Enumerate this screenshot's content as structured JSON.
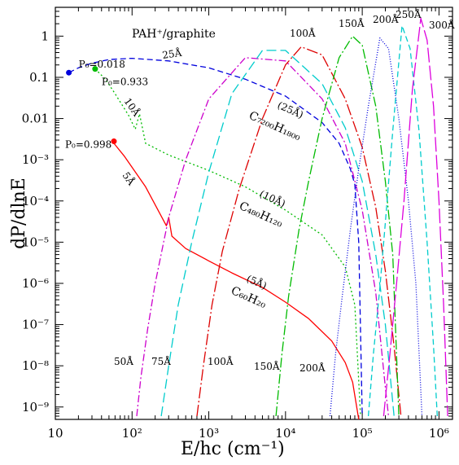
{
  "chart_data": {
    "type": "line",
    "title": "PAH⁺/graphite",
    "xlabel": "E/hc    (cm⁻¹)",
    "ylabel": "dP/dlnE",
    "xscale": "log",
    "yscale": "log",
    "xlim": [
      10,
      1500000
    ],
    "ylim": [
      5e-10,
      5
    ],
    "x_ticks": [
      {
        "value": 10,
        "label": "10"
      },
      {
        "value": 100,
        "label": "10²"
      },
      {
        "value": 1000,
        "label": "10³"
      },
      {
        "value": 10000,
        "label": "10⁴"
      },
      {
        "value": 100000,
        "label": "10⁵"
      },
      {
        "value": 1000000,
        "label": "10⁶"
      }
    ],
    "y_ticks": [
      {
        "value": 1,
        "label": "1"
      },
      {
        "value": 0.1,
        "label": "0.1"
      },
      {
        "value": 0.01,
        "label": "0.01"
      },
      {
        "value": 0.001,
        "label": "10⁻³"
      },
      {
        "value": 0.0001,
        "label": "10⁻⁴"
      },
      {
        "value": 1e-05,
        "label": "10⁻⁵"
      },
      {
        "value": 1e-06,
        "label": "10⁻⁶"
      },
      {
        "value": 1e-07,
        "label": "10⁻⁷"
      },
      {
        "value": 1e-08,
        "label": "10⁻⁸"
      },
      {
        "value": 1e-09,
        "label": "10⁻⁹"
      }
    ],
    "grid": false,
    "series": [
      {
        "name": "5Å",
        "color": "#ff0000",
        "dash": "solid",
        "x": [
          58,
          80,
          150,
          280,
          300,
          330,
          500,
          1000,
          2000,
          5000,
          10000,
          20000,
          40000,
          60000,
          75000,
          90000
        ],
        "y": [
          0.0025,
          0.0012,
          0.00022,
          2.5e-05,
          4e-05,
          1.4e-05,
          7e-06,
          3.5e-06,
          1.8e-06,
          8e-07,
          3.5e-07,
          1.4e-07,
          4e-08,
          1.2e-08,
          4e-09,
          5e-10
        ]
      },
      {
        "name": "10Å",
        "color": "#00bb00",
        "dash": "2,3",
        "x": [
          33,
          45,
          60,
          90,
          110,
          125,
          150,
          300,
          1000,
          3000,
          10000,
          30000,
          60000,
          80000,
          95000
        ],
        "y": [
          0.16,
          0.09,
          0.04,
          0.012,
          0.0055,
          0.013,
          0.0025,
          0.0013,
          0.00055,
          0.00022,
          6e-05,
          1.5e-05,
          2.5e-06,
          3e-07,
          6e-10
        ]
      },
      {
        "name": "25Å",
        "color": "#0000dd",
        "dash": "7,4",
        "x": [
          15,
          20,
          30,
          50,
          100,
          300,
          1000,
          3000,
          10000,
          30000,
          50000,
          70000,
          80000,
          90000,
          100000
        ],
        "y": [
          0.13,
          0.17,
          0.22,
          0.27,
          0.29,
          0.25,
          0.17,
          0.09,
          0.035,
          0.008,
          0.0025,
          0.0006,
          0.00025,
          1e-05,
          6e-10
        ]
      },
      {
        "name": "50Å",
        "color": "#cc00cc",
        "dash": "9,3,2,3",
        "x": [
          115,
          130,
          160,
          200,
          300,
          500,
          1000,
          3000,
          10000,
          30000,
          60000,
          100000,
          150000,
          200000,
          220000
        ],
        "y": [
          6e-10,
          5e-09,
          8e-08,
          1e-06,
          4e-05,
          0.001,
          0.03,
          0.3,
          0.25,
          0.03,
          0.0025,
          6e-05,
          6e-07,
          3e-09,
          6e-10
        ]
      },
      {
        "name": "75Å",
        "color": "#00cccc",
        "dash": "12,5",
        "x": [
          240,
          300,
          400,
          600,
          1000,
          2000,
          5000,
          10000,
          30000,
          60000,
          100000,
          150000,
          200000,
          260000
        ],
        "y": [
          6e-10,
          1e-08,
          3e-07,
          1e-05,
          0.0005,
          0.04,
          0.45,
          0.45,
          0.07,
          0.006,
          0.0003,
          5e-06,
          1e-07,
          6e-10
        ]
      },
      {
        "name": "100Å",
        "color": "#dd0000",
        "dash": "14,3,2,3",
        "x": [
          700,
          850,
          1100,
          1500,
          2500,
          5000,
          10000,
          16000,
          30000,
          60000,
          100000,
          150000,
          200000,
          260000,
          320000
        ],
        "y": [
          6e-10,
          1e-08,
          3e-07,
          6e-06,
          0.0002,
          0.01,
          0.2,
          0.55,
          0.35,
          0.03,
          0.002,
          7e-05,
          2e-06,
          3e-08,
          6e-10
        ]
      },
      {
        "name": "150Å",
        "color": "#00bb00",
        "dash": "12,3,2,3",
        "x": [
          7500,
          9000,
          11000,
          15000,
          20000,
          30000,
          50000,
          75000,
          100000,
          150000,
          200000,
          250000,
          300000
        ],
        "y": [
          6e-10,
          2e-08,
          5e-07,
          2e-05,
          0.0003,
          0.01,
          0.3,
          1.0,
          0.6,
          0.02,
          0.0003,
          5e-06,
          6e-10
        ]
      },
      {
        "name": "200Å",
        "color": "#0000dd",
        "dash": "1,2",
        "x": [
          38000,
          45000,
          55000,
          70000,
          90000,
          120000,
          170000,
          220000,
          300000,
          400000,
          500000,
          600000
        ],
        "y": [
          6e-10,
          2e-08,
          5e-07,
          2e-05,
          0.0006,
          0.02,
          0.9,
          0.5,
          0.01,
          0.0001,
          1e-06,
          6e-10
        ]
      },
      {
        "name": "250Å",
        "color": "#00cccc",
        "dash": "7,4",
        "x": [
          120000,
          140000,
          170000,
          200000,
          250000,
          330000,
          420000,
          550000,
          700000,
          850000,
          950000
        ],
        "y": [
          6e-10,
          2e-08,
          8e-07,
          3e-05,
          0.005,
          1.8,
          0.5,
          0.005,
          1e-05,
          3e-08,
          6e-10
        ]
      },
      {
        "name": "300Å",
        "color": "#dd00dd",
        "dash": "18,4",
        "x": [
          190000,
          230000,
          280000,
          350000,
          450000,
          580000,
          700000,
          850000,
          1000000,
          1150000,
          1300000
        ],
        "y": [
          6e-10,
          2e-08,
          1e-06,
          0.0001,
          0.05,
          2.7,
          0.8,
          0.02,
          0.0001,
          3e-07,
          6e-10
        ]
      }
    ],
    "markers": [
      {
        "x": 15,
        "y": 0.13,
        "color": "#0000dd",
        "label": "P₀=0.018"
      },
      {
        "x": 33,
        "y": 0.16,
        "color": "#00bb00",
        "label": "P₀=0.933"
      },
      {
        "x": 58,
        "y": 0.0028,
        "color": "#ff0000",
        "label": "P₀=0.998"
      }
    ],
    "annotations": {
      "curve_25": "25Å",
      "curve_10": "10Å",
      "curve_5": "5Å",
      "mol_25_size": "(25Å)",
      "mol_25_formula": "C₇₂₀₀H₁₈₀₀",
      "mol_10_size": "(10Å)",
      "mol_10_formula": "C₄₈₀H₁₂₀",
      "mol_5_size": "(5Å)",
      "mol_5_formula": "C₆₀H₂₀",
      "bottom_50": "50Å",
      "bottom_75": "75Å",
      "bottom_100": "100Å",
      "bottom_150": "150Å",
      "bottom_200": "200Å",
      "top_100": "100Å",
      "top_150": "150Å",
      "top_200": "200Å",
      "top_250": "250Å",
      "top_300": "300Å"
    }
  }
}
